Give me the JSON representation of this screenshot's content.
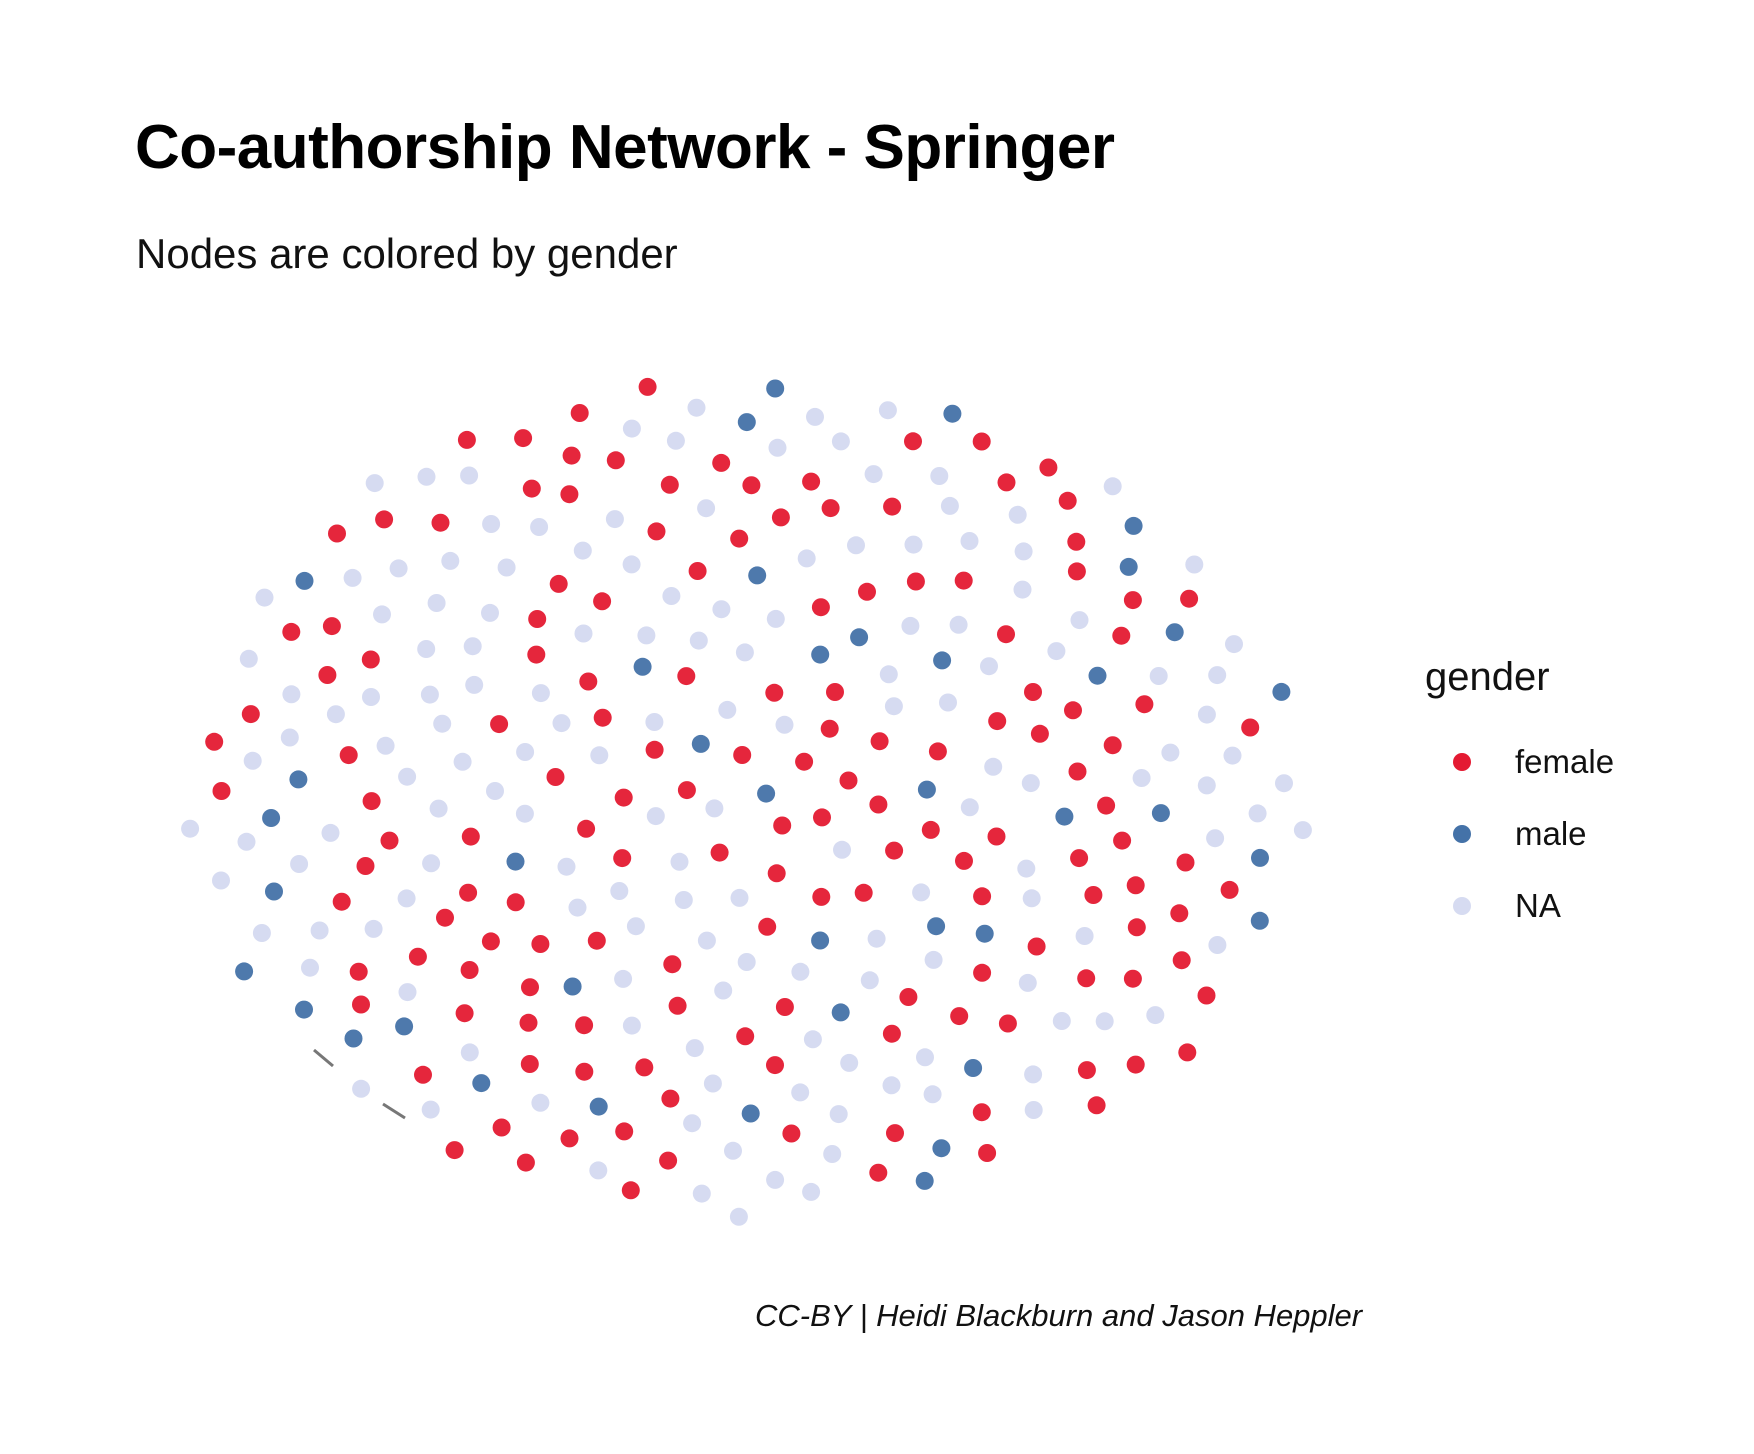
{
  "title": "Co-authorship Network - Springer",
  "subtitle": "Nodes are colored by gender",
  "caption": "CC-BY | Heidi Blackburn and Jason Heppler",
  "legend": {
    "title": "gender",
    "items": [
      {
        "key": "female",
        "label": "female",
        "color": "#e41a32"
      },
      {
        "key": "male",
        "label": "male",
        "color": "#4472a8"
      },
      {
        "key": "na",
        "label": "NA",
        "color": "#d6dbf1"
      }
    ]
  },
  "edge_color": "#777777",
  "chart_data": {
    "type": "network",
    "color_by": "gender",
    "node_counts": {
      "female": 151,
      "male": 40,
      "NA": 153
    },
    "edges": 2
  }
}
